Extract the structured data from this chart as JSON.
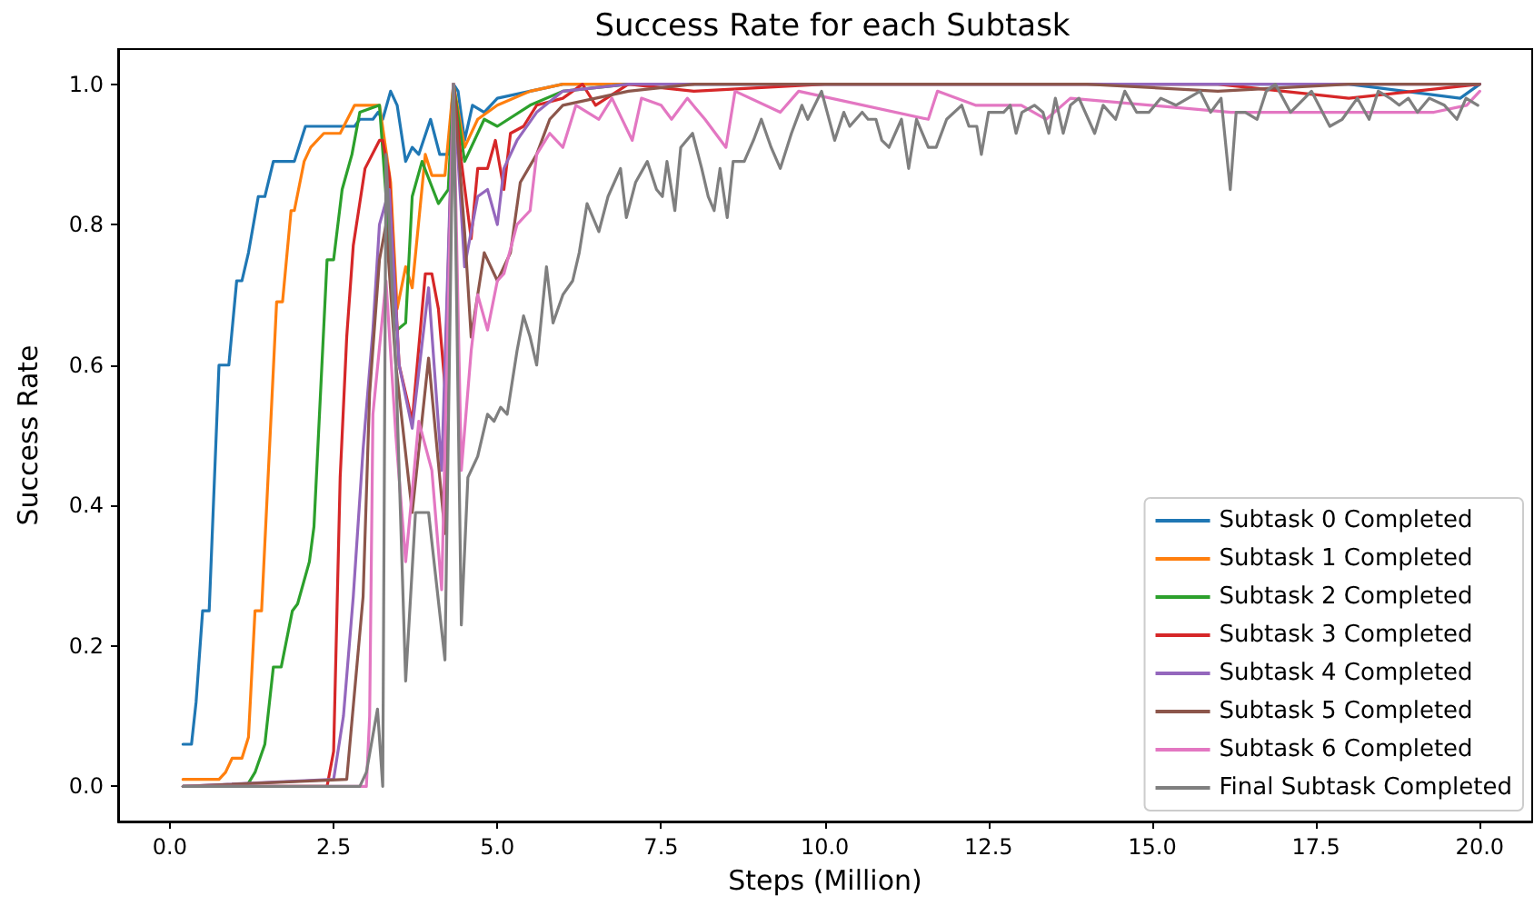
{
  "chart_data": {
    "type": "line",
    "title": "Success Rate for each Subtask",
    "xlabel": "Steps (Million)",
    "ylabel": "Success Rate",
    "xlim": [
      -0.79,
      20.8
    ],
    "ylim": [
      -0.05,
      1.05
    ],
    "xticks": [
      {
        "value": 0,
        "label": "0.0"
      },
      {
        "value": 2.5,
        "label": "2.5"
      },
      {
        "value": 5,
        "label": "5.0"
      },
      {
        "value": 7.5,
        "label": "7.5"
      },
      {
        "value": 10,
        "label": "10.0"
      },
      {
        "value": 12.5,
        "label": "12.5"
      },
      {
        "value": 15,
        "label": "15.0"
      },
      {
        "value": 17.5,
        "label": "17.5"
      },
      {
        "value": 20,
        "label": "20.0"
      }
    ],
    "yticks": [
      {
        "value": 0,
        "label": "0.0"
      },
      {
        "value": 0.2,
        "label": "0.2"
      },
      {
        "value": 0.4,
        "label": "0.4"
      },
      {
        "value": 0.6,
        "label": "0.6"
      },
      {
        "value": 0.8,
        "label": "0.8"
      },
      {
        "value": 1,
        "label": "1.0"
      }
    ],
    "grid": false,
    "legend": "lower right",
    "marker": "none",
    "line_style": "solid",
    "series": [
      {
        "name": "Subtask 0 Completed",
        "color": "#1f77b4",
        "x": [
          0.2,
          0.33,
          0.4,
          0.5,
          0.6,
          0.75,
          0.9,
          1.02,
          1.1,
          1.2,
          1.35,
          1.45,
          1.58,
          1.9,
          2.07,
          2.82,
          2.9,
          3.1,
          3.18,
          3.25,
          3.37,
          3.47,
          3.6,
          3.7,
          3.8,
          3.98,
          4.12,
          4.25,
          4.33,
          4.4,
          4.5,
          4.62,
          4.8,
          5.0,
          5.5,
          6.0,
          7.0,
          8.0,
          9.0,
          10.0,
          12.0,
          14.0,
          16.0,
          18.0,
          19.7,
          20.0
        ],
        "values": [
          0.06,
          0.06,
          0.12,
          0.25,
          0.25,
          0.6,
          0.6,
          0.72,
          0.72,
          0.76,
          0.84,
          0.84,
          0.89,
          0.89,
          0.94,
          0.94,
          0.95,
          0.95,
          0.96,
          0.95,
          0.99,
          0.97,
          0.89,
          0.91,
          0.9,
          0.95,
          0.9,
          0.9,
          1.0,
          0.99,
          0.92,
          0.97,
          0.96,
          0.98,
          0.99,
          1.0,
          1.0,
          1.0,
          1.0,
          1.0,
          1.0,
          1.0,
          1.0,
          1.0,
          0.98,
          1.0
        ]
      },
      {
        "name": "Subtask 1 Completed",
        "color": "#ff7f0e",
        "x": [
          0.2,
          0.75,
          0.85,
          0.95,
          1.1,
          1.2,
          1.3,
          1.4,
          1.63,
          1.72,
          1.85,
          1.9,
          2.05,
          2.15,
          2.35,
          2.6,
          2.82,
          3.2,
          3.37,
          3.47,
          3.6,
          3.7,
          3.9,
          4.0,
          4.2,
          4.33,
          4.5,
          4.7,
          5.0,
          5.5,
          6.0,
          7.0,
          8.0
        ],
        "values": [
          0.01,
          0.01,
          0.02,
          0.04,
          0.04,
          0.07,
          0.25,
          0.25,
          0.69,
          0.69,
          0.82,
          0.82,
          0.89,
          0.91,
          0.93,
          0.93,
          0.97,
          0.97,
          0.86,
          0.68,
          0.74,
          0.71,
          0.9,
          0.87,
          0.87,
          1.0,
          0.91,
          0.95,
          0.97,
          0.99,
          1.0,
          1.0,
          1.0
        ]
      },
      {
        "name": "Subtask 2 Completed",
        "color": "#2ca02c",
        "x": [
          0.2,
          1.17,
          1.3,
          1.45,
          1.58,
          1.7,
          1.87,
          1.95,
          2.13,
          2.2,
          2.4,
          2.5,
          2.63,
          2.78,
          2.9,
          3.2,
          3.37,
          3.47,
          3.6,
          3.7,
          3.85,
          4.1,
          4.25,
          4.33,
          4.5,
          4.8,
          5.0,
          5.5,
          6.0,
          7.0
        ],
        "values": [
          0,
          0,
          0.02,
          0.06,
          0.17,
          0.17,
          0.25,
          0.26,
          0.32,
          0.37,
          0.75,
          0.75,
          0.85,
          0.9,
          0.96,
          0.97,
          0.75,
          0.65,
          0.66,
          0.84,
          0.89,
          0.83,
          0.85,
          1.0,
          0.89,
          0.95,
          0.94,
          0.97,
          0.99,
          1.0
        ]
      },
      {
        "name": "Subtask 3 Completed",
        "color": "#d62728",
        "x": [
          0.2,
          2.4,
          2.5,
          2.6,
          2.7,
          2.8,
          2.98,
          3.2,
          3.25,
          3.35,
          3.5,
          3.7,
          3.9,
          4.0,
          4.1,
          4.2,
          4.33,
          4.45,
          4.6,
          4.7,
          4.85,
          4.97,
          5.1,
          5.2,
          5.4,
          5.6,
          6.0,
          6.3,
          6.5,
          7.0,
          8.0,
          10.0,
          12.0,
          14.0,
          16.0,
          18.0,
          20.0
        ],
        "values": [
          0,
          0,
          0.05,
          0.44,
          0.64,
          0.77,
          0.88,
          0.92,
          0.92,
          0.87,
          0.6,
          0.52,
          0.73,
          0.73,
          0.68,
          0.57,
          1.0,
          0.89,
          0.78,
          0.88,
          0.88,
          0.92,
          0.85,
          0.93,
          0.94,
          0.97,
          0.98,
          1.0,
          0.97,
          1.0,
          0.99,
          1.0,
          1.0,
          1.0,
          1.0,
          0.98,
          1.0
        ]
      },
      {
        "name": "Subtask 4 Completed",
        "color": "#9467bd",
        "x": [
          0.2,
          2.5,
          2.65,
          2.8,
          2.95,
          3.1,
          3.2,
          3.35,
          3.5,
          3.7,
          3.95,
          4.15,
          4.33,
          4.5,
          4.7,
          4.85,
          5.0,
          5.1,
          5.3,
          5.6,
          6.0,
          7.0,
          8.0,
          10.0,
          12.0,
          14.0,
          16.0,
          18.0,
          20.0
        ],
        "values": [
          0,
          0.01,
          0.1,
          0.27,
          0.48,
          0.65,
          0.8,
          0.85,
          0.6,
          0.51,
          0.71,
          0.45,
          1.0,
          0.74,
          0.84,
          0.85,
          0.8,
          0.88,
          0.92,
          0.96,
          0.99,
          1.0,
          1.0,
          1.0,
          1.0,
          1.0,
          1.0,
          1.0,
          1.0
        ]
      },
      {
        "name": "Subtask 5 Completed",
        "color": "#8c564b",
        "x": [
          0.2,
          2.7,
          2.95,
          3.05,
          3.2,
          3.3,
          3.45,
          3.7,
          3.95,
          4.2,
          4.33,
          4.5,
          4.6,
          4.8,
          5.0,
          5.2,
          5.35,
          5.6,
          5.8,
          6.0,
          6.5,
          7.0,
          8.0,
          10.0,
          12.0,
          14.0,
          16.0,
          18.0,
          20.0
        ],
        "values": [
          0,
          0.01,
          0.27,
          0.56,
          0.75,
          0.8,
          0.6,
          0.39,
          0.61,
          0.36,
          1.0,
          0.79,
          0.64,
          0.76,
          0.72,
          0.76,
          0.86,
          0.9,
          0.95,
          0.97,
          0.98,
          0.99,
          1.0,
          1.0,
          1.0,
          1.0,
          0.99,
          1.0,
          1.0
        ]
      },
      {
        "name": "Subtask 6 Completed",
        "color": "#e377c2",
        "x": [
          0.2,
          3.0,
          3.05,
          3.1,
          3.3,
          3.45,
          3.6,
          3.8,
          4.0,
          4.15,
          4.33,
          4.45,
          4.6,
          4.7,
          4.85,
          5.0,
          5.1,
          5.3,
          5.5,
          5.6,
          5.8,
          6.0,
          6.2,
          6.55,
          6.75,
          7.06,
          7.2,
          7.5,
          7.66,
          7.9,
          8.17,
          8.49,
          8.63,
          9.32,
          9.6,
          11.58,
          11.72,
          12.3,
          13.0,
          13.38,
          13.75,
          16.2,
          17.2,
          19.3,
          19.8,
          20.0
        ],
        "values": [
          0,
          0,
          0.1,
          0.53,
          0.72,
          0.5,
          0.32,
          0.52,
          0.45,
          0.28,
          1.0,
          0.45,
          0.62,
          0.7,
          0.65,
          0.72,
          0.73,
          0.8,
          0.82,
          0.9,
          0.93,
          0.91,
          0.97,
          0.95,
          0.98,
          0.92,
          0.98,
          0.97,
          0.95,
          0.98,
          0.95,
          0.91,
          0.99,
          0.96,
          0.99,
          0.95,
          0.99,
          0.97,
          0.97,
          0.95,
          0.98,
          0.96,
          0.96,
          0.96,
          0.97,
          0.99
        ]
      },
      {
        "name": "Final Subtask Completed",
        "color": "#7f7f7f",
        "x": [
          0.2,
          2.9,
          3.0,
          3.17,
          3.25,
          3.3,
          3.45,
          3.6,
          3.75,
          3.95,
          4.2,
          4.33,
          4.45,
          4.55,
          4.7,
          4.85,
          4.95,
          5.05,
          5.15,
          5.3,
          5.4,
          5.5,
          5.6,
          5.75,
          5.85,
          6.0,
          6.15,
          6.25,
          6.37,
          6.55,
          6.69,
          6.88,
          6.97,
          7.11,
          7.29,
          7.43,
          7.52,
          7.59,
          7.71,
          7.8,
          7.98,
          8.12,
          8.22,
          8.31,
          8.4,
          8.51,
          8.6,
          8.77,
          8.91,
          9.03,
          9.18,
          9.32,
          9.49,
          9.65,
          9.74,
          9.95,
          10.15,
          10.29,
          10.38,
          10.57,
          10.66,
          10.78,
          10.87,
          10.98,
          11.17,
          11.28,
          11.4,
          11.58,
          11.7,
          11.86,
          12.09,
          12.2,
          12.32,
          12.39,
          12.5,
          12.73,
          12.83,
          12.92,
          13.01,
          13.2,
          13.33,
          13.42,
          13.52,
          13.64,
          13.75,
          13.88,
          14.12,
          14.25,
          14.44,
          14.58,
          14.76,
          14.95,
          15.13,
          15.36,
          15.73,
          15.89,
          16.05,
          16.19,
          16.28,
          16.42,
          16.6,
          16.74,
          16.88,
          17.11,
          17.43,
          17.71,
          17.9,
          18.13,
          18.31,
          18.45,
          18.63,
          18.77,
          18.91,
          19.05,
          19.23,
          19.46,
          19.65,
          19.79,
          19.97
        ],
        "values": [
          0,
          0,
          0.02,
          0.11,
          0.0,
          0.9,
          0.6,
          0.15,
          0.39,
          0.39,
          0.18,
          1.0,
          0.23,
          0.44,
          0.47,
          0.53,
          0.52,
          0.54,
          0.53,
          0.62,
          0.67,
          0.64,
          0.6,
          0.74,
          0.66,
          0.7,
          0.72,
          0.76,
          0.83,
          0.79,
          0.84,
          0.88,
          0.81,
          0.86,
          0.89,
          0.85,
          0.84,
          0.89,
          0.82,
          0.91,
          0.93,
          0.88,
          0.84,
          0.82,
          0.88,
          0.81,
          0.89,
          0.89,
          0.92,
          0.95,
          0.91,
          0.88,
          0.93,
          0.97,
          0.95,
          0.99,
          0.92,
          0.96,
          0.94,
          0.96,
          0.95,
          0.95,
          0.92,
          0.91,
          0.95,
          0.88,
          0.95,
          0.91,
          0.91,
          0.95,
          0.97,
          0.94,
          0.94,
          0.9,
          0.96,
          0.96,
          0.97,
          0.93,
          0.96,
          0.97,
          0.96,
          0.93,
          0.98,
          0.93,
          0.97,
          0.98,
          0.93,
          0.97,
          0.95,
          0.99,
          0.96,
          0.96,
          0.98,
          0.97,
          0.99,
          0.96,
          0.98,
          0.85,
          0.96,
          0.96,
          0.95,
          0.99,
          1.0,
          0.96,
          0.99,
          0.94,
          0.95,
          0.98,
          0.95,
          0.99,
          0.98,
          0.97,
          0.98,
          0.96,
          0.98,
          0.97,
          0.95,
          0.98,
          0.97
        ]
      }
    ]
  }
}
